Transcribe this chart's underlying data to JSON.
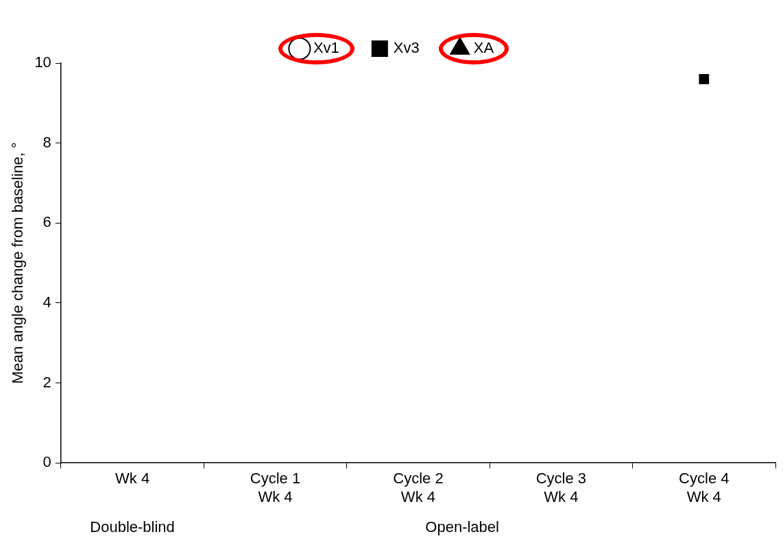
{
  "chart_data": {
    "type": "line",
    "ylabel": "Mean angle change from baseline, °",
    "categories": [
      "Wk 4",
      "Cycle 1\nWk 4",
      "Cycle 2\nWk 4",
      "Cycle 3\nWk 4",
      "Cycle 4\nWk 4"
    ],
    "series": [
      {
        "name": "Xv1",
        "color": "#000000",
        "marker": "circle",
        "values": [
          null,
          null,
          null,
          null,
          null
        ]
      },
      {
        "name": "Xv3",
        "color": "#000000",
        "marker": "square",
        "values": [
          null,
          null,
          null,
          null,
          9.6
        ]
      },
      {
        "name": "XA",
        "color": "#000000",
        "marker": "triangle",
        "values": [
          null,
          null,
          null,
          null,
          null
        ]
      }
    ],
    "ylim": [
      0,
      10
    ],
    "yticks": [
      0,
      2,
      4,
      6,
      8,
      10
    ],
    "grid": false,
    "legend": "top",
    "annotations": [
      "Double-blind",
      "Open-label"
    ]
  }
}
